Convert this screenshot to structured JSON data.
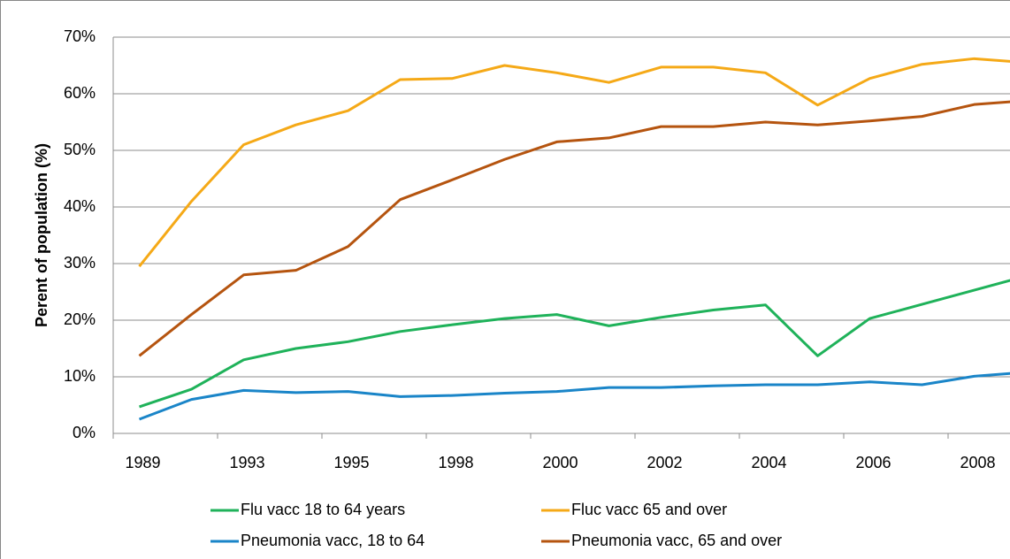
{
  "chart_data": {
    "type": "line",
    "y_label": "Perent of population (%)",
    "categories": [
      "1989",
      null,
      "1993",
      null,
      "1995",
      null,
      "1998",
      null,
      "2000",
      null,
      "2002",
      null,
      "2004",
      null,
      "2006",
      null,
      "2008",
      null
    ],
    "series": [
      {
        "name": "Flu vacc 18 to 64 years",
        "color": "#1fb25a",
        "values": [
          4.7,
          7.8,
          13,
          15,
          16.2,
          18,
          19.2,
          20.3,
          21,
          19,
          20.5,
          21.8,
          22.7,
          13.7,
          20.3,
          22.8,
          25.3,
          27.8
        ]
      },
      {
        "name": "Fluc vacc 65 and over",
        "color": "#f5a917",
        "values": [
          29.5,
          41,
          51,
          54.5,
          57,
          62.5,
          62.7,
          65,
          63.7,
          62,
          64.7,
          64.7,
          63.7,
          58,
          62.7,
          65.2,
          66.2,
          65.5
        ]
      },
      {
        "name": "Pneumonia vacc, 18 to 64",
        "color": "#1a85c8",
        "values": [
          2.5,
          6,
          7.6,
          7.2,
          7.4,
          6.5,
          6.7,
          7.1,
          7.4,
          8.1,
          8.1,
          8.4,
          8.6,
          8.6,
          9.1,
          8.6,
          10.1,
          10.8
        ]
      },
      {
        "name": "Pneumonia vacc, 65 and over",
        "color": "#b5540f",
        "values": [
          13.7,
          21,
          28,
          28.8,
          33,
          41.3,
          44.8,
          48.4,
          51.5,
          52.2,
          54.2,
          54.2,
          55,
          54.5,
          55.2,
          56,
          58.1,
          58.8
        ]
      }
    ],
    "ylim": [
      0,
      70
    ],
    "yticks": [
      {
        "value": 0,
        "label": "0%"
      },
      {
        "value": 10,
        "label": "10%"
      },
      {
        "value": 20,
        "label": "20%"
      },
      {
        "value": 30,
        "label": "30%"
      },
      {
        "value": 40,
        "label": "40%"
      },
      {
        "value": 50,
        "label": "50%"
      },
      {
        "value": 60,
        "label": "60%"
      },
      {
        "value": 70,
        "label": "70%"
      }
    ],
    "grid": true,
    "legend": "bottom"
  }
}
